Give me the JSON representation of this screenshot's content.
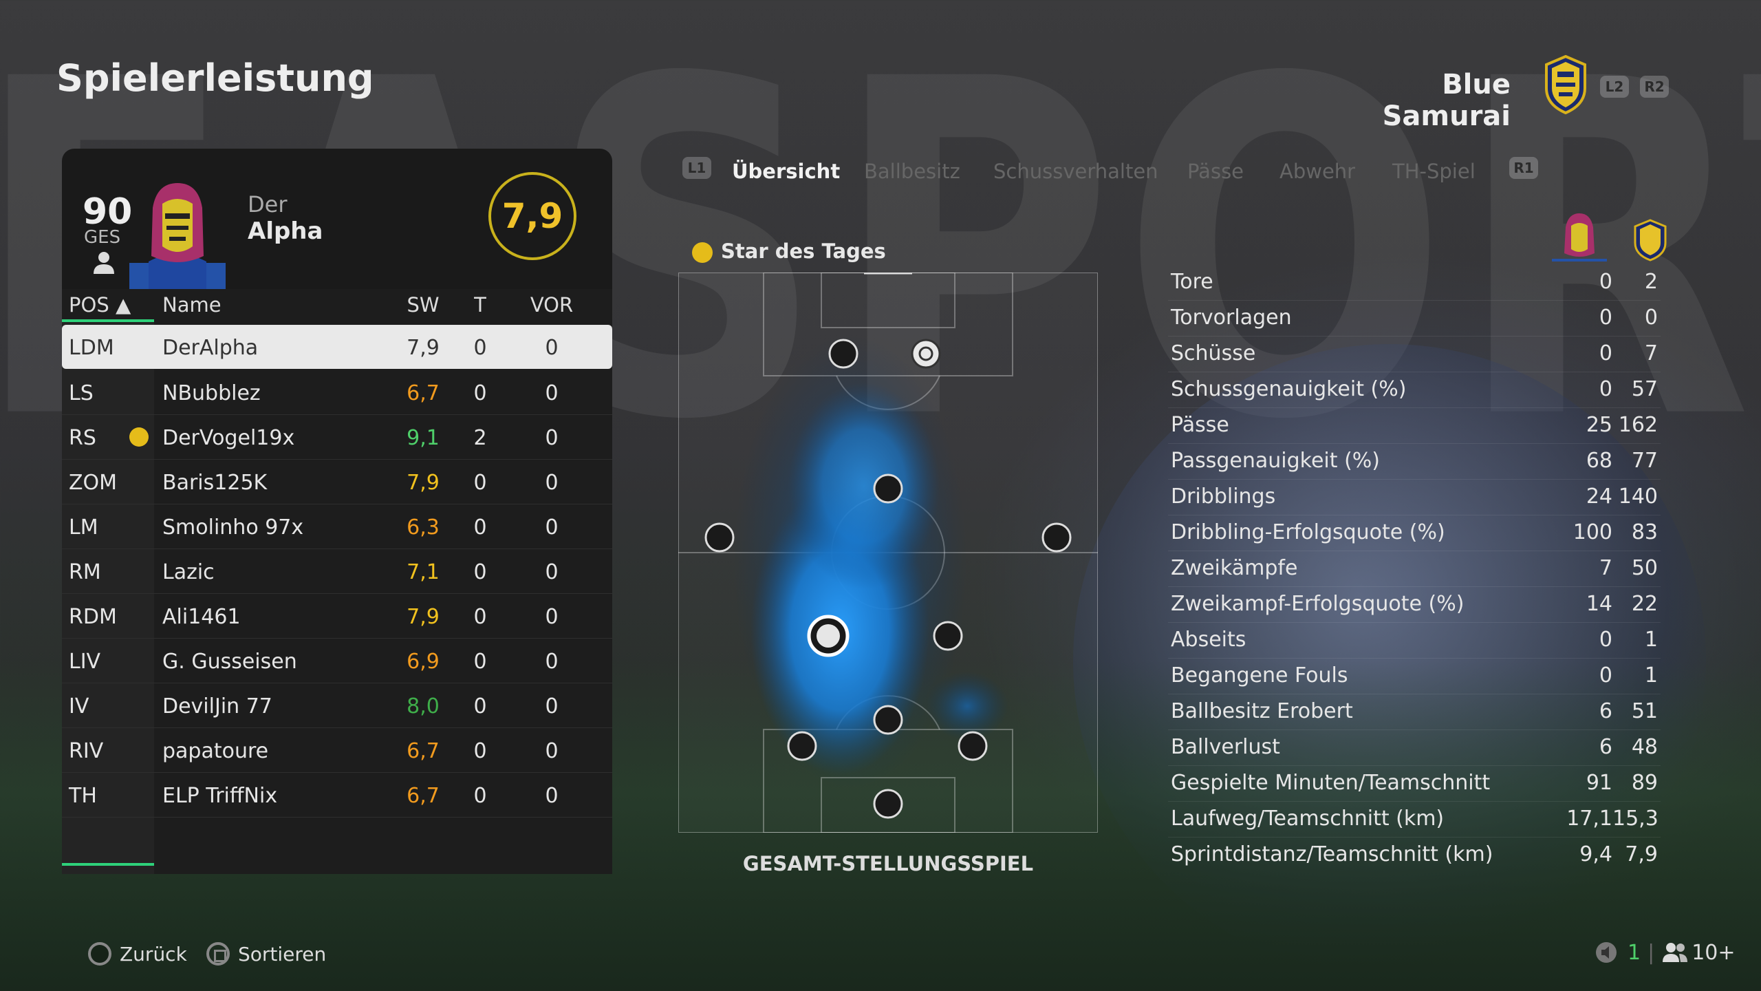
{
  "header": {
    "title": "Spielerleistung",
    "team_name": "Blue Samurai",
    "l2_label": "L2",
    "r2_label": "R2"
  },
  "player": {
    "ovr": "90",
    "ovr_label": "GES",
    "first_name": "Der",
    "last_name": "Alpha",
    "rating": "7,9"
  },
  "table": {
    "headers": {
      "pos": "POS ▲",
      "name": "Name",
      "sw": "SW",
      "t": "T",
      "vor": "VOR"
    },
    "rows": [
      {
        "pos": "LDM",
        "name": "DerAlpha",
        "sw": "7,9",
        "t": "0",
        "vor": "0",
        "sw_color": "dark"
      },
      {
        "pos": "LS",
        "name": "NBubblez",
        "sw": "6,7",
        "t": "0",
        "vor": "0",
        "sw_color": "orange"
      },
      {
        "pos": "RS",
        "name": "DerVogel19x",
        "sw": "9,1",
        "t": "2",
        "vor": "0",
        "sw_color": "green"
      },
      {
        "pos": "ZOM",
        "name": "Baris125K",
        "sw": "7,9",
        "t": "0",
        "vor": "0",
        "sw_color": "yellow"
      },
      {
        "pos": "LM",
        "name": "Smolinho 97x",
        "sw": "6,3",
        "t": "0",
        "vor": "0",
        "sw_color": "orange"
      },
      {
        "pos": "RM",
        "name": "Lazic",
        "sw": "7,1",
        "t": "0",
        "vor": "0",
        "sw_color": "yellow"
      },
      {
        "pos": "RDM",
        "name": "Ali1461",
        "sw": "7,9",
        "t": "0",
        "vor": "0",
        "sw_color": "yellow"
      },
      {
        "pos": "LIV",
        "name": "G. Gusseisen",
        "sw": "6,9",
        "t": "0",
        "vor": "0",
        "sw_color": "orange"
      },
      {
        "pos": "IV",
        "name": "DevilJin 77",
        "sw": "8,0",
        "t": "0",
        "vor": "0",
        "sw_color": "dkgreen"
      },
      {
        "pos": "RIV",
        "name": "papatoure",
        "sw": "6,7",
        "t": "0",
        "vor": "0",
        "sw_color": "orange"
      },
      {
        "pos": "TH",
        "name": "ELP TriffNix",
        "sw": "6,7",
        "t": "0",
        "vor": "0",
        "sw_color": "orange"
      }
    ]
  },
  "tabs": {
    "l1": "L1",
    "r1": "R1",
    "items": [
      "Übersicht",
      "Ballbesitz",
      "Schussverhalten",
      "Pässe",
      "Abwehr",
      "TH-Spiel"
    ]
  },
  "pitch": {
    "star_label": "Star des Tages",
    "caption": "GESAMT-STELLUNGSSPIEL"
  },
  "stats": [
    {
      "label": "Tore",
      "player": "0",
      "team": "2"
    },
    {
      "label": "Torvorlagen",
      "player": "0",
      "team": "0"
    },
    {
      "label": "Schüsse",
      "player": "0",
      "team": "7"
    },
    {
      "label": "Schussgenauigkeit (%)",
      "player": "0",
      "team": "57"
    },
    {
      "label": "Pässe",
      "player": "25",
      "team": "162"
    },
    {
      "label": "Passgenauigkeit (%)",
      "player": "68",
      "team": "77"
    },
    {
      "label": "Dribblings",
      "player": "24",
      "team": "140"
    },
    {
      "label": "Dribbling-Erfolgsquote (%)",
      "player": "100",
      "team": "83"
    },
    {
      "label": "Zweikämpfe",
      "player": "7",
      "team": "50"
    },
    {
      "label": "Zweikampf-Erfolgsquote (%)",
      "player": "14",
      "team": "22"
    },
    {
      "label": "Abseits",
      "player": "0",
      "team": "1"
    },
    {
      "label": "Begangene Fouls",
      "player": "0",
      "team": "1"
    },
    {
      "label": "Ballbesitz Erobert",
      "player": "6",
      "team": "51"
    },
    {
      "label": "Ballverlust",
      "player": "6",
      "team": "48"
    },
    {
      "label": "Gespielte Minuten/Teamschnitt",
      "player": "91",
      "team": "89"
    },
    {
      "label": "Laufweg/Teamschnitt (km)",
      "player": "17,1",
      "team": "15,3"
    },
    {
      "label": "Sprintdistanz/Teamschnitt (km)",
      "player": "9,4",
      "team": "7,9"
    }
  ],
  "footer": {
    "back_label": "Zurück",
    "sort_label": "Sortieren",
    "mic_count": "1",
    "party_count": "10+"
  },
  "colors": {
    "accent_green": "#2ed17a",
    "rating_gold": "#f0c22a",
    "heatmap_blue": "#1e88e5"
  }
}
